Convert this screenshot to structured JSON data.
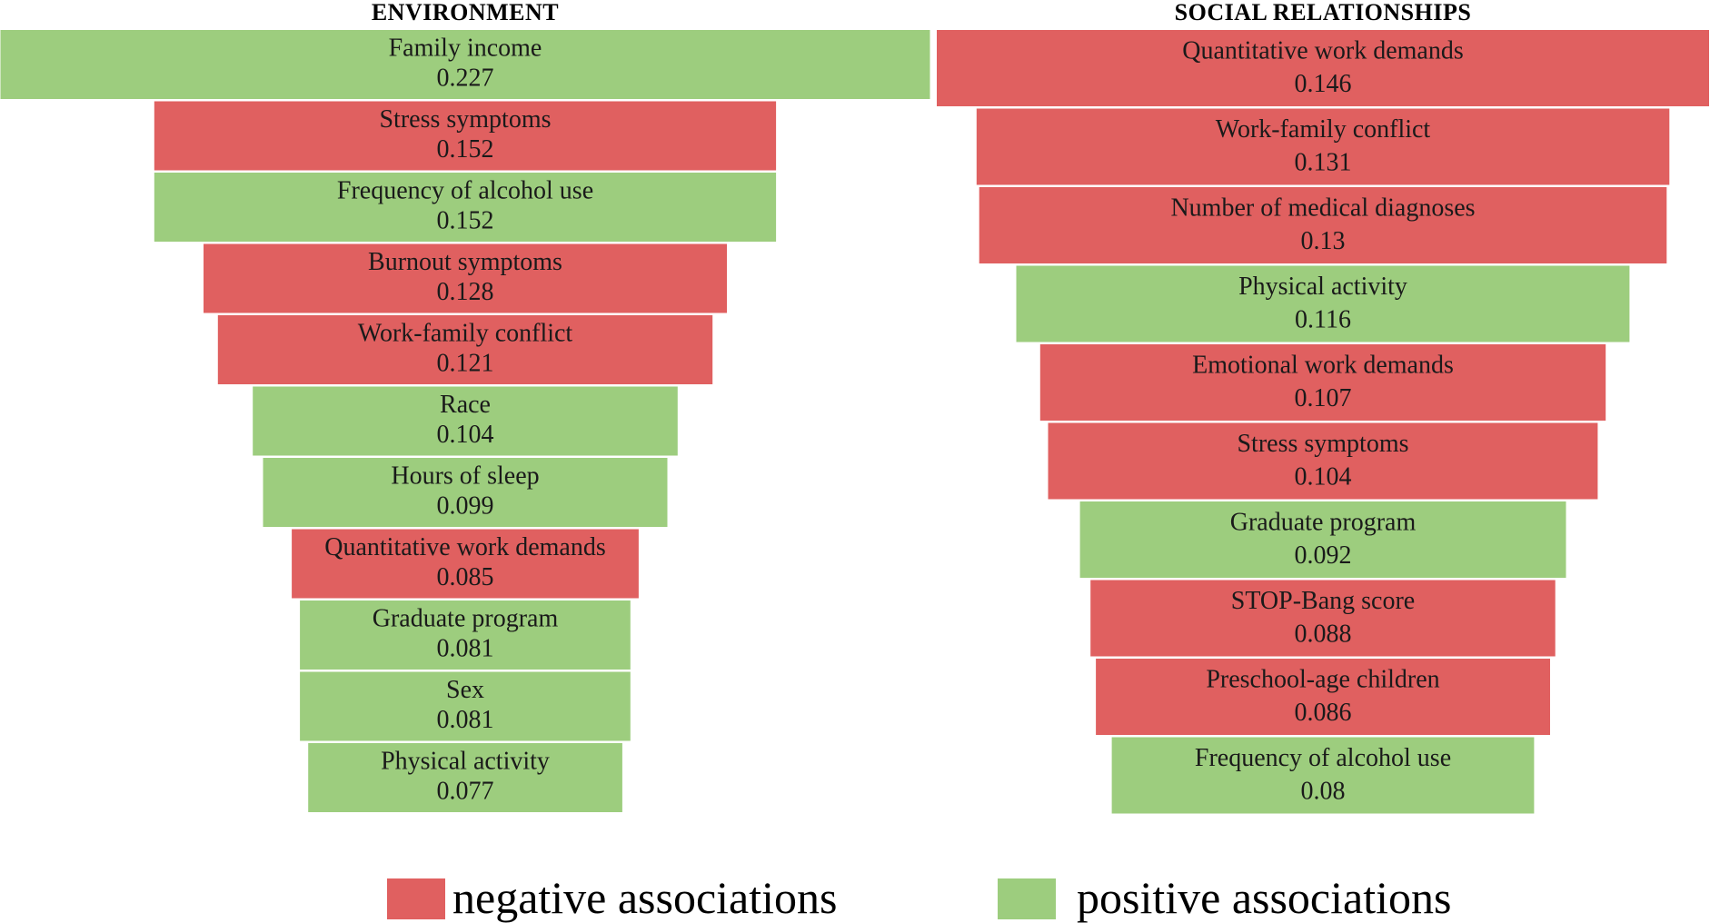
{
  "colors": {
    "negative": "#e06060",
    "positive": "#9dcd7e",
    "border": "#ffffff"
  },
  "chart_data": [
    {
      "type": "bar",
      "orientation": "horizontal-centered-funnel",
      "title": "ENVIRONMENT",
      "bars": [
        {
          "label": "Family income",
          "value": 0.227,
          "association": "positive"
        },
        {
          "label": "Stress symptoms",
          "value": 0.152,
          "association": "negative"
        },
        {
          "label": "Frequency of alcohol use",
          "value": 0.152,
          "association": "positive"
        },
        {
          "label": "Burnout symptoms",
          "value": 0.128,
          "association": "negative"
        },
        {
          "label": "Work-family conflict",
          "value": 0.121,
          "association": "negative"
        },
        {
          "label": "Race",
          "value": 0.104,
          "association": "positive"
        },
        {
          "label": "Hours of sleep",
          "value": 0.099,
          "association": "positive"
        },
        {
          "label": "Quantitative work demands",
          "value": 0.085,
          "association": "negative"
        },
        {
          "label": "Graduate program",
          "value": 0.081,
          "association": "positive"
        },
        {
          "label": "Sex",
          "value": 0.081,
          "association": "positive"
        },
        {
          "label": "Physical activity",
          "value": 0.077,
          "association": "positive"
        }
      ],
      "value_labels": [
        "0.227",
        "0.152",
        "0.152",
        "0.128",
        "0.121",
        "0.104",
        "0.099",
        "0.085",
        "0.081",
        "0.081",
        "0.077"
      ]
    },
    {
      "type": "bar",
      "orientation": "horizontal-centered-funnel",
      "title": "SOCIAL RELATIONSHIPS",
      "bars": [
        {
          "label": "Quantitative work demands",
          "value": 0.146,
          "association": "negative"
        },
        {
          "label": "Work-family conflict",
          "value": 0.131,
          "association": "negative"
        },
        {
          "label": "Number of medical diagnoses",
          "value": 0.13,
          "association": "negative"
        },
        {
          "label": "Physical activity",
          "value": 0.116,
          "association": "positive"
        },
        {
          "label": "Emotional work demands",
          "value": 0.107,
          "association": "negative"
        },
        {
          "label": "Stress symptoms",
          "value": 0.104,
          "association": "negative"
        },
        {
          "label": "Graduate program",
          "value": 0.092,
          "association": "positive"
        },
        {
          "label": "STOP-Bang score",
          "value": 0.088,
          "association": "negative"
        },
        {
          "label": "Preschool-age children",
          "value": 0.086,
          "association": "negative"
        },
        {
          "label": "Frequency of alcohol use",
          "value": 0.08,
          "association": "positive"
        }
      ],
      "value_labels": [
        "0.146",
        "0.131",
        "0.13",
        "0.116",
        "0.107",
        "0.104",
        "0.092",
        "0.088",
        "0.086",
        "0.08"
      ]
    }
  ],
  "legend": {
    "negative_label": "negative associations",
    "positive_label": "positive associations"
  }
}
